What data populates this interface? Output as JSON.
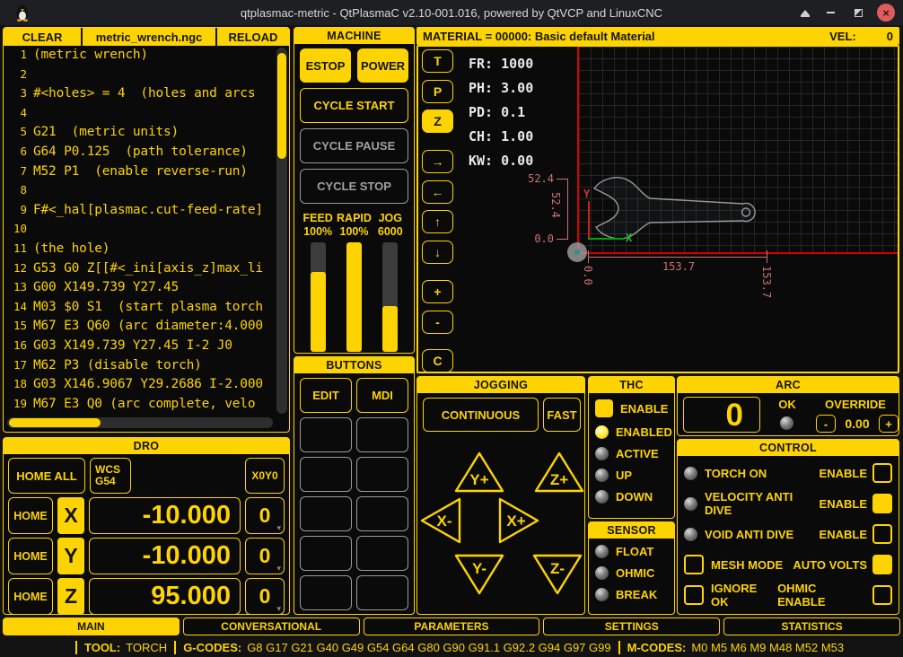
{
  "colors": {
    "accent": "#fdd302",
    "red": "#d40000",
    "dim_annotation": "#cb7272",
    "axis_x_green": "#00a500",
    "axis_y_red": "#cc2222",
    "close_button": "#e05c5c"
  },
  "title_bar": {
    "title": "qtplasmac-metric - QtPlasmaC v2.10-001.016, powered by QtVCP and LinuxCNC",
    "close_glyph": "×"
  },
  "file_panel": {
    "clear": "CLEAR",
    "filename": "metric_wrench.ngc",
    "reload": "RELOAD",
    "gcode_lines": [
      {
        "n": "1",
        "t": "(metric wrench)"
      },
      {
        "n": "2",
        "t": ""
      },
      {
        "n": "3",
        "t": "#<holes> = 4  (holes and arcs "
      },
      {
        "n": "4",
        "t": ""
      },
      {
        "n": "5",
        "t": "G21  (metric units)"
      },
      {
        "n": "6",
        "t": "G64 P0.125  (path tolerance)"
      },
      {
        "n": "7",
        "t": "M52 P1  (enable reverse-run)"
      },
      {
        "n": "8",
        "t": ""
      },
      {
        "n": "9",
        "t": "F#<_hal[plasmac.cut-feed-rate]"
      },
      {
        "n": "10",
        "t": ""
      },
      {
        "n": "11",
        "t": "(the hole)"
      },
      {
        "n": "12",
        "t": "G53 G0 Z[[#<_ini[axis_z]max_li"
      },
      {
        "n": "13",
        "t": "G00 X149.739 Y27.45"
      },
      {
        "n": "14",
        "t": "M03 $0 S1  (start plasma torch"
      },
      {
        "n": "15",
        "t": "M67 E3 Q60 (arc diameter:4.000"
      },
      {
        "n": "16",
        "t": "G03 X149.739 Y27.45 I-2 J0"
      },
      {
        "n": "17",
        "t": "M62 P3 (disable torch)"
      },
      {
        "n": "18",
        "t": "G03 X146.9067 Y29.2686 I-2.000"
      },
      {
        "n": "19",
        "t": "M67 E3 Q0 (arc complete, velo"
      }
    ]
  },
  "machine": {
    "header": "MACHINE",
    "estop": "ESTOP",
    "power": "POWER",
    "cycle_start": "CYCLE START",
    "cycle_pause": "CYCLE PAUSE",
    "cycle_stop": "CYCLE STOP",
    "sliders": [
      {
        "label": "FEED",
        "value": "100%",
        "fill_pct": 73
      },
      {
        "label": "RAPID",
        "value": "100%",
        "fill_pct": 100
      },
      {
        "label": "JOG",
        "value": "6000",
        "fill_pct": 42
      }
    ]
  },
  "buttons_panel": {
    "header": "BUTTONS",
    "slots": [
      "EDIT",
      "MDI",
      "",
      "",
      "",
      "",
      "",
      "",
      "",
      "",
      "",
      ""
    ]
  },
  "material_bar": {
    "text": "MATERIAL =  00000: Basic default Material",
    "vel_label": "VEL:",
    "vel_value": "0"
  },
  "preview": {
    "side_buttons": [
      {
        "label": "T",
        "active": false
      },
      {
        "label": "P",
        "active": false
      },
      {
        "label": "Z",
        "active": true
      },
      {
        "label": "→",
        "active": false
      },
      {
        "label": "←",
        "active": false
      },
      {
        "label": "↑",
        "active": false
      },
      {
        "label": "↓",
        "active": false
      },
      {
        "label": "+",
        "active": false
      },
      {
        "label": "-",
        "active": false
      },
      {
        "label": "C",
        "active": false
      }
    ],
    "overlay_text": "FR: 1000\nPH: 3.00\nPD: 0.1\nCH: 1.00\nKW: 0.00",
    "annotations": {
      "dim_v_top": "52.4",
      "dim_v_side": "52.4",
      "dim_v_bottom": "0.0",
      "dim_h_center": "153.7",
      "dim_h_left": "0.0",
      "dim_h_right": "153.7",
      "axis_x": "X",
      "axis_y": "Y"
    }
  },
  "dro": {
    "header": "DRO",
    "home_all": "HOME ALL",
    "wcs_line1": "WCS",
    "wcs_line2": "G54",
    "x0y0": "X0Y0",
    "home": "HOME",
    "axes": [
      {
        "axis": "X",
        "value": "-10.000",
        "zero": "0"
      },
      {
        "axis": "Y",
        "value": "-10.000",
        "zero": "0"
      },
      {
        "axis": "Z",
        "value": "95.000",
        "zero": "0"
      }
    ],
    "caret": "▾"
  },
  "jogging": {
    "header": "JOGGING",
    "continuous": "CONTINUOUS",
    "fast": "FAST",
    "pads": [
      {
        "label": "Y+"
      },
      {
        "label": "Z+"
      },
      {
        "label": "X-"
      },
      {
        "label": "X+"
      },
      {
        "label": "Y-"
      },
      {
        "label": "Z-"
      }
    ]
  },
  "thc": {
    "header": "THC",
    "enable": {
      "label": "ENABLE",
      "checked": true
    },
    "leds": [
      {
        "label": "ENABLED",
        "on": true
      },
      {
        "label": "ACTIVE",
        "on": false
      },
      {
        "label": "UP",
        "on": false
      },
      {
        "label": "DOWN",
        "on": false
      }
    ]
  },
  "sensor": {
    "header": "SENSOR",
    "leds": [
      {
        "label": "FLOAT",
        "on": false
      },
      {
        "label": "OHMIC",
        "on": false
      },
      {
        "label": "BREAK",
        "on": false
      }
    ]
  },
  "arc": {
    "header": "ARC",
    "value": "0",
    "ok_label": "OK",
    "ok_on": false,
    "override_label": "OVERRIDE",
    "minus": "-",
    "override_value": "0.00",
    "plus": "+"
  },
  "control": {
    "header": "CONTROL",
    "rows": [
      {
        "left": "led",
        "led_on": false,
        "left_checked": false,
        "label": "TORCH ON",
        "right_label": "ENABLE",
        "checked": false
      },
      {
        "left": "led",
        "led_on": false,
        "left_checked": false,
        "label": "VELOCITY ANTI DIVE",
        "right_label": "ENABLE",
        "checked": true
      },
      {
        "left": "led",
        "led_on": false,
        "left_checked": false,
        "label": "VOID ANTI DIVE",
        "right_label": "ENABLE",
        "checked": false
      },
      {
        "left": "checkbox",
        "led_on": false,
        "left_checked": false,
        "label": "MESH MODE",
        "right_label": "AUTO VOLTS",
        "checked": true
      },
      {
        "left": "checkbox",
        "led_on": false,
        "left_checked": false,
        "label": "IGNORE OK",
        "right_label": "OHMIC ENABLE",
        "checked": false
      }
    ]
  },
  "tabs": [
    {
      "label": "MAIN",
      "active": true
    },
    {
      "label": "CONVERSATIONAL",
      "active": false
    },
    {
      "label": "PARAMETERS",
      "active": false
    },
    {
      "label": "SETTINGS",
      "active": false
    },
    {
      "label": "STATISTICS",
      "active": false
    }
  ],
  "status_bar": {
    "tool_label": "TOOL:",
    "tool_value": "TORCH",
    "gcodes_label": "G-CODES:",
    "gcodes": "G8 G17 G21 G40 G49 G54 G64 G80 G90 G91.1 G92.2 G94 G97 G99",
    "mcodes_label": "M-CODES:",
    "mcodes": "M0 M5 M6 M9 M48 M52 M53"
  }
}
